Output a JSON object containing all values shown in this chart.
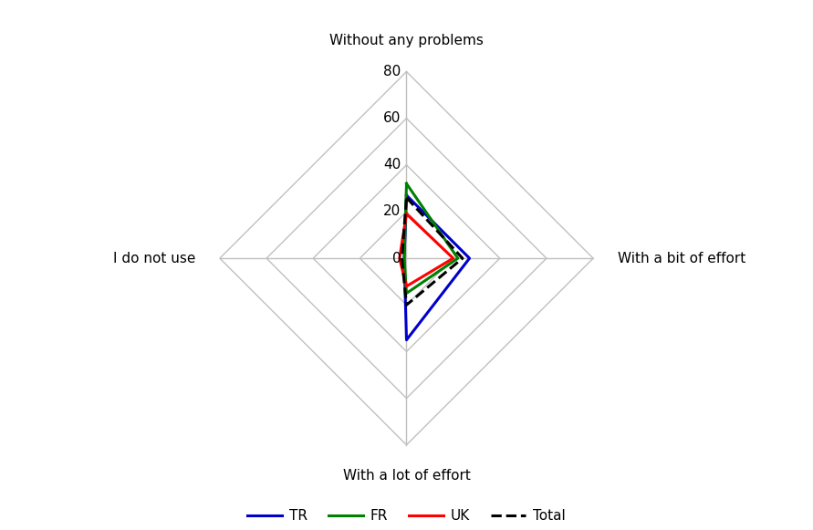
{
  "categories": [
    "Without any problems",
    "With a bit of effort",
    "With a lot of effort",
    "I do not use"
  ],
  "series_order": [
    "TR",
    "FR",
    "UK",
    "Total"
  ],
  "series": {
    "TR": [
      27,
      27,
      35,
      1
    ],
    "FR": [
      32,
      22,
      15,
      1
    ],
    "UK": [
      19,
      20,
      12,
      3
    ],
    "Total": [
      26,
      24,
      20,
      2
    ]
  },
  "series_colors": {
    "TR": "#0000cc",
    "FR": "#008000",
    "UK": "#ff0000",
    "Total": "#000000"
  },
  "series_styles": {
    "TR": "solid",
    "FR": "solid",
    "UK": "solid",
    "Total": "dashed"
  },
  "series_linewidths": {
    "TR": 2.2,
    "FR": 2.2,
    "UK": 2.2,
    "Total": 2.2
  },
  "r_max": 80,
  "r_ticks": [
    20,
    40,
    60,
    80
  ],
  "r_tick_labels": [
    "20",
    "40",
    "60",
    "80"
  ],
  "grid_color": "#c0c0c0",
  "background_color": "#ffffff",
  "label_fontsize": 11,
  "tick_fontsize": 11,
  "legend_fontsize": 11
}
